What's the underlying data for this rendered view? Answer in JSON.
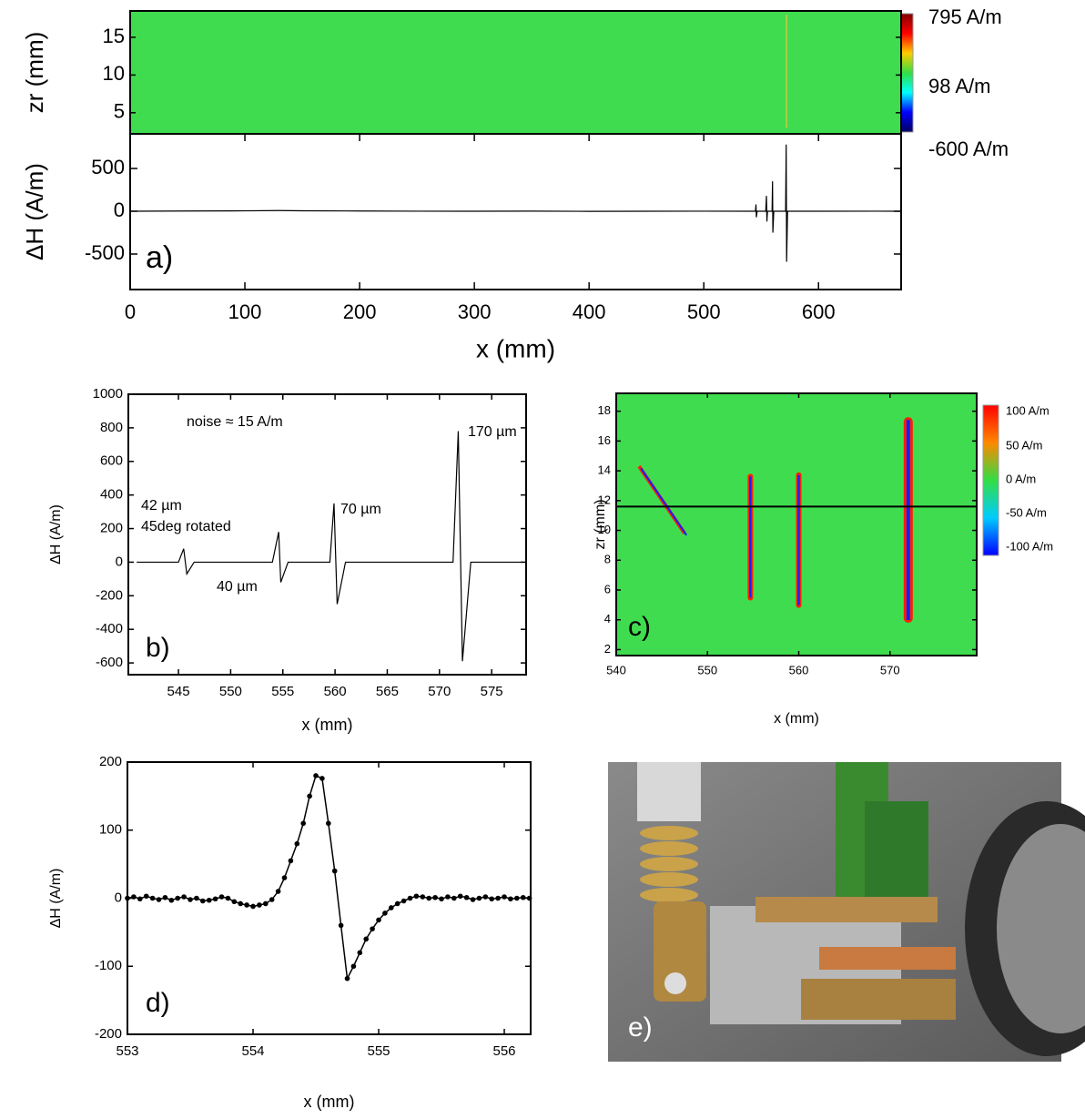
{
  "chart_data": [
    {
      "type": "heatmap",
      "ylabel": "zr (mm)",
      "xlim": [
        0,
        672
      ],
      "ylim": [
        2.2,
        18.5
      ],
      "yticks": [
        5,
        10,
        15
      ],
      "background": "#3fdc4f",
      "feature_colors": [
        "#d8c84a",
        "#b8c848"
      ],
      "features": [
        {
          "x": [
            571.5,
            572.5
          ],
          "y": [
            3,
            18
          ]
        }
      ],
      "colorbar": {
        "labels": [
          "795 A/m",
          "98 A/m",
          "-600 A/m"
        ],
        "colors": [
          "#800000",
          "#ff0000",
          "#ffcc00",
          "#33dd44",
          "#00ffff",
          "#0000ff",
          "#000060"
        ]
      }
    },
    {
      "type": "line",
      "ylabel": "ΔH (A/m)",
      "xlabel": "x (mm)",
      "label": "a)",
      "color": "#000000",
      "xlim": [
        0,
        672
      ],
      "ylim": [
        -915,
        905
      ],
      "xticks": [
        0,
        100,
        200,
        300,
        400,
        500,
        600
      ],
      "yticks": [
        -500,
        0,
        500
      ],
      "x": [
        0,
        50,
        100,
        130,
        150,
        200,
        250,
        300,
        350,
        400,
        450,
        500,
        540,
        545,
        545.5,
        545.8,
        546.5,
        554,
        554.6,
        555,
        555.5,
        559.5,
        559.9,
        560.2,
        561,
        571.3,
        571.8,
        572.2,
        573,
        600,
        650,
        672
      ],
      "values": [
        0,
        3,
        5,
        8,
        6,
        3,
        1,
        0,
        2,
        -1,
        0,
        1,
        0,
        0,
        80,
        -70,
        0,
        0,
        180,
        -120,
        0,
        0,
        350,
        -250,
        0,
        0,
        780,
        -590,
        0,
        0,
        1,
        0
      ]
    },
    {
      "type": "line",
      "ylabel": "ΔH (A/m)",
      "xlabel": "x (mm)",
      "label": "b)",
      "color": "#000000",
      "xlim": [
        540.2,
        578.3
      ],
      "ylim": [
        -670,
        1000
      ],
      "xticks": [
        545,
        550,
        555,
        560,
        565,
        570,
        575
      ],
      "yticks": [
        -600,
        -400,
        -200,
        0,
        200,
        400,
        600,
        800,
        1000
      ],
      "x": [
        541,
        545,
        545.5,
        545.8,
        546.5,
        554,
        554.6,
        554.8,
        555.5,
        559.5,
        559.9,
        560.2,
        561,
        571.3,
        571.8,
        572.2,
        573,
        578
      ],
      "values": [
        0,
        0,
        80,
        -70,
        0,
        0,
        180,
        -120,
        0,
        0,
        350,
        -250,
        0,
        0,
        780,
        -590,
        0,
        0
      ],
      "annotations": [
        "noise ≈ 15 A/m",
        "170 µm",
        "70 µm",
        "42 µm",
        "45deg rotated",
        "40 µm"
      ]
    },
    {
      "type": "heatmap",
      "ylabel": "zr (mm)",
      "xlabel": "x (mm)",
      "label": "c)",
      "xlim": [
        540,
        579.5
      ],
      "ylim": [
        1.6,
        19.2
      ],
      "xticks": [
        540,
        550,
        560,
        570
      ],
      "yticks": [
        2,
        4,
        6,
        8,
        10,
        12,
        14,
        16,
        18
      ],
      "background": "#3fdc4f",
      "feature_colors": [
        "#ff2000",
        "#1020ff"
      ],
      "hline": 11.6,
      "features": [
        {
          "x": [
            542.5,
            547.5
          ],
          "y": [
            14.3,
            9.8
          ]
        },
        {
          "x": [
            554.4,
            555.0
          ],
          "y": [
            5.3,
            13.8
          ]
        },
        {
          "x": [
            559.7,
            560.3
          ],
          "y": [
            4.8,
            13.9
          ]
        },
        {
          "x": [
            571.5,
            572.5
          ],
          "y": [
            3.8,
            17.6
          ]
        }
      ],
      "colorbar": {
        "labels": [
          "100 A/m",
          "50 A/m",
          "0 A/m",
          "-50 A/m",
          "-100 A/m"
        ],
        "colors": [
          "#ff0000",
          "#ff8800",
          "#33dd44",
          "#00ccff",
          "#0000ff"
        ]
      }
    },
    {
      "type": "line",
      "ylabel": "ΔH (A/m)",
      "xlabel": "x (mm)",
      "label": "d)",
      "color": "#000000",
      "markers": true,
      "xlim": [
        553,
        556.21
      ],
      "ylim": [
        -200,
        200
      ],
      "xticks": [
        553,
        554,
        555,
        556
      ],
      "yticks": [
        -200,
        -100,
        0,
        100,
        200
      ],
      "x": [
        553.0,
        553.05,
        553.1,
        553.15,
        553.2,
        553.25,
        553.3,
        553.35,
        553.4,
        553.45,
        553.5,
        553.55,
        553.6,
        553.65,
        553.7,
        553.75,
        553.8,
        553.85,
        553.9,
        553.95,
        554.0,
        554.05,
        554.1,
        554.15,
        554.2,
        554.25,
        554.3,
        554.35,
        554.4,
        554.45,
        554.5,
        554.55,
        554.6,
        554.65,
        554.7,
        554.75,
        554.8,
        554.85,
        554.9,
        554.95,
        555.0,
        555.05,
        555.1,
        555.15,
        555.2,
        555.25,
        555.3,
        555.35,
        555.4,
        555.45,
        555.5,
        555.55,
        555.6,
        555.65,
        555.7,
        555.75,
        555.8,
        555.85,
        555.9,
        555.95,
        556.0,
        556.05,
        556.1,
        556.15,
        556.2
      ],
      "values": [
        0,
        2,
        -1,
        3,
        0,
        -2,
        1,
        -3,
        0,
        2,
        -2,
        0,
        -4,
        -3,
        -1,
        2,
        0,
        -5,
        -8,
        -10,
        -12,
        -10,
        -8,
        -2,
        10,
        30,
        55,
        80,
        110,
        150,
        180,
        176,
        110,
        40,
        -40,
        -118,
        -100,
        -80,
        -60,
        -45,
        -32,
        -22,
        -14,
        -8,
        -4,
        0,
        3,
        2,
        0,
        1,
        -1,
        2,
        0,
        3,
        1,
        -2,
        0,
        2,
        -1,
        0,
        2,
        -1,
        0,
        1,
        0
      ]
    }
  ],
  "photo": {
    "label": "e)"
  }
}
